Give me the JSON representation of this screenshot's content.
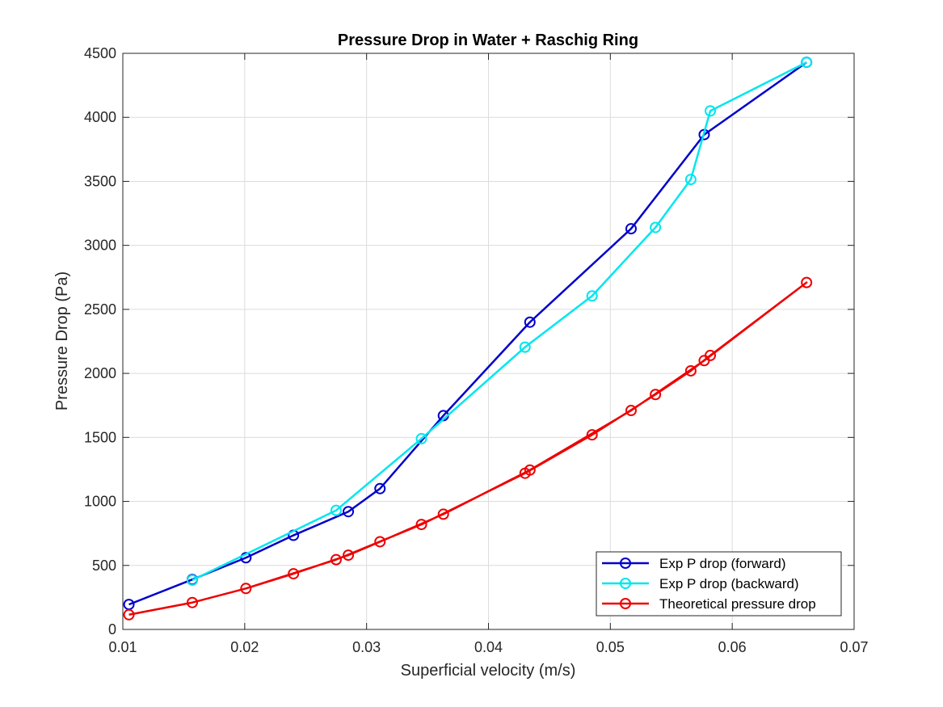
{
  "chart_data": {
    "type": "line",
    "title": "Pressure Drop in Water + Raschig Ring",
    "xlabel": "Superficial velocity (m/s)",
    "ylabel": "Pressure Drop (Pa)",
    "xlim": [
      0.01,
      0.07
    ],
    "ylim": [
      0,
      4500
    ],
    "xticks": [
      0.01,
      0.02,
      0.03,
      0.04,
      0.05,
      0.06,
      0.07
    ],
    "xtick_labels": [
      "0.01",
      "0.02",
      "0.03",
      "0.04",
      "0.05",
      "0.06",
      "0.07"
    ],
    "yticks": [
      0,
      500,
      1000,
      1500,
      2000,
      2500,
      3000,
      3500,
      4000,
      4500
    ],
    "ytick_labels": [
      "0",
      "500",
      "1000",
      "1500",
      "2000",
      "2500",
      "3000",
      "3500",
      "4000",
      "4500"
    ],
    "grid": true,
    "legend_position": "bottom-right",
    "series": [
      {
        "name": "Exp P drop (forward)",
        "color": "#0000cc",
        "marker": "circle",
        "x": [
          0.0105,
          0.0157,
          0.0201,
          0.024,
          0.0285,
          0.0311,
          0.0363,
          0.0434,
          0.0517,
          0.0577,
          0.0661
        ],
        "y": [
          195,
          390,
          560,
          735,
          920,
          1100,
          1670,
          2400,
          3130,
          3865,
          4430
        ]
      },
      {
        "name": "Exp P drop (backward)",
        "color": "#00e6ef",
        "marker": "circle",
        "x": [
          0.0157,
          0.0275,
          0.0345,
          0.043,
          0.0485,
          0.0537,
          0.0566,
          0.0582,
          0.0661
        ],
        "y": [
          385,
          930,
          1490,
          2205,
          2605,
          3140,
          3515,
          4050,
          4430
        ]
      },
      {
        "name": "Theoretical pressure drop",
        "color": "#ee0000",
        "marker": "circle",
        "x": [
          0.0105,
          0.0157,
          0.0201,
          0.024,
          0.0275,
          0.0285,
          0.0311,
          0.0345,
          0.0363,
          0.043,
          0.0434,
          0.0485,
          0.0517,
          0.0537,
          0.0566,
          0.0577,
          0.0582,
          0.0661
        ],
        "y": [
          115,
          210,
          320,
          435,
          545,
          580,
          685,
          820,
          900,
          1220,
          1245,
          1520,
          1710,
          1835,
          2020,
          2100,
          2140,
          2710
        ],
        "draw_order": [
          0,
          1,
          2,
          3,
          5,
          6,
          8,
          10,
          12,
          15,
          17,
          16,
          14,
          13,
          11,
          9,
          7,
          4,
          2,
          1,
          0
        ]
      }
    ]
  }
}
